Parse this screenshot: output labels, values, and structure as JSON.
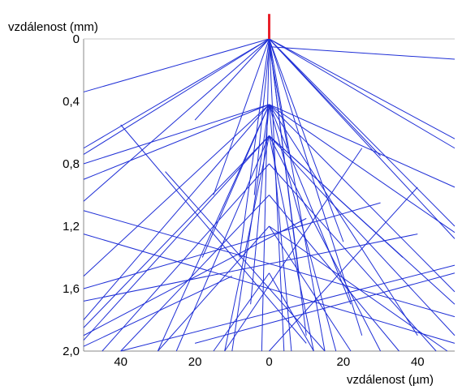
{
  "chart_data": {
    "type": "line",
    "title": "",
    "ylabel": "vzdálenost (mm)",
    "xlabel": "vzdálenost (µm)",
    "xlim": [
      -50,
      50
    ],
    "ylim": [
      0,
      2.0
    ],
    "y_inverted": true,
    "grid": false,
    "x_ticks": [
      {
        "value": -40,
        "label": "40"
      },
      {
        "value": -20,
        "label": "20"
      },
      {
        "value": 0,
        "label": "0"
      },
      {
        "value": 20,
        "label": "20"
      },
      {
        "value": 40,
        "label": "40"
      }
    ],
    "y_ticks": [
      {
        "value": 0,
        "label": "0"
      },
      {
        "value": 0.4,
        "label": "0,4"
      },
      {
        "value": 0.8,
        "label": "0,8"
      },
      {
        "value": 1.2,
        "label": "1,2"
      },
      {
        "value": 1.6,
        "label": "1,6"
      },
      {
        "value": 2.0,
        "label": "2,0"
      }
    ],
    "source_marker": {
      "x": 0,
      "y_top": -0.16,
      "y_bottom": 0.0,
      "color": "#e8202a"
    },
    "colors": {
      "trajectory": "#1f2fd6",
      "axis": "#c8c8c8"
    },
    "segments": [
      [
        0,
        0,
        -50,
        0.34
      ],
      [
        0,
        0,
        -50,
        0.7
      ],
      [
        0,
        0,
        -50,
        0.74
      ],
      [
        0,
        0,
        -50,
        1.04
      ],
      [
        0,
        0,
        -20,
        0.52
      ],
      [
        0,
        0,
        -15,
        1.0
      ],
      [
        0,
        0,
        -8,
        1.4
      ],
      [
        0,
        0,
        -2,
        2.0
      ],
      [
        0,
        0,
        4,
        2.0
      ],
      [
        0,
        0,
        10,
        1.9
      ],
      [
        0,
        0,
        20,
        1.3
      ],
      [
        0,
        0,
        50,
        0.64
      ],
      [
        0,
        0,
        50,
        0.7
      ],
      [
        0,
        0,
        30,
        0.75
      ],
      [
        0,
        0,
        50,
        1.2
      ],
      [
        0,
        0,
        50,
        1.28
      ],
      [
        0,
        0,
        25,
        1.9
      ],
      [
        0,
        0,
        15,
        2.0
      ],
      [
        0,
        0,
        8,
        1.5
      ],
      [
        0,
        0.05,
        50,
        0.13
      ],
      [
        0,
        0.05,
        5,
        0.7
      ],
      [
        0,
        0.05,
        -4,
        1.0
      ],
      [
        0,
        0.42,
        -50,
        0.8
      ],
      [
        0,
        0.42,
        -50,
        0.9
      ],
      [
        0,
        0.42,
        -50,
        1.52
      ],
      [
        0,
        0.42,
        -50,
        1.8
      ],
      [
        0,
        0.42,
        -30,
        2.0
      ],
      [
        0,
        0.42,
        -10,
        2.0
      ],
      [
        0,
        0.42,
        -5,
        1.7
      ],
      [
        0,
        0.42,
        6,
        2.0
      ],
      [
        0,
        0.42,
        18,
        2.0
      ],
      [
        0,
        0.42,
        50,
        0.95
      ],
      [
        0,
        0.42,
        50,
        1.24
      ],
      [
        0,
        0.42,
        50,
        1.62
      ],
      [
        0,
        0.42,
        40,
        1.9
      ],
      [
        0,
        0.42,
        22,
        1.7
      ],
      [
        0,
        0.42,
        -18,
        1.4
      ],
      [
        0,
        0.62,
        -50,
        1.85
      ],
      [
        0,
        0.62,
        -50,
        1.93
      ],
      [
        0,
        0.62,
        -25,
        2.0
      ],
      [
        0,
        0.62,
        -12,
        2.0
      ],
      [
        0,
        0.62,
        12,
        2.0
      ],
      [
        0,
        0.62,
        30,
        2.0
      ],
      [
        0,
        0.62,
        50,
        1.7
      ],
      [
        0,
        0.62,
        50,
        1.9
      ],
      [
        0,
        0.62,
        36,
        1.4
      ],
      [
        -50,
        1.1,
        50,
        1.78
      ],
      [
        -50,
        1.25,
        50,
        1.95
      ],
      [
        -50,
        1.6,
        30,
        1.05
      ],
      [
        -50,
        1.68,
        40,
        1.25
      ],
      [
        -50,
        1.9,
        10,
        1.15
      ],
      [
        -50,
        1.97,
        -10,
        1.52
      ],
      [
        50,
        1.45,
        -40,
        2.0
      ],
      [
        50,
        1.5,
        -20,
        1.95
      ],
      [
        0,
        1.2,
        -30,
        2.0
      ],
      [
        0,
        1.2,
        22,
        2.0
      ],
      [
        0,
        1.2,
        48,
        2.0
      ],
      [
        0,
        1.0,
        -40,
        2.0
      ],
      [
        0,
        1.0,
        35,
        2.0
      ],
      [
        0,
        0.8,
        -45,
        2.0
      ],
      [
        0,
        0.8,
        45,
        2.0
      ],
      [
        0,
        1.5,
        -15,
        2.0
      ],
      [
        0,
        1.5,
        12,
        2.0
      ],
      [
        -40,
        0.55,
        10,
        1.95
      ],
      [
        -28,
        0.85,
        15,
        2.0
      ],
      [
        25,
        0.7,
        -12,
        2.0
      ],
      [
        40,
        0.95,
        0,
        2.0
      ]
    ]
  }
}
